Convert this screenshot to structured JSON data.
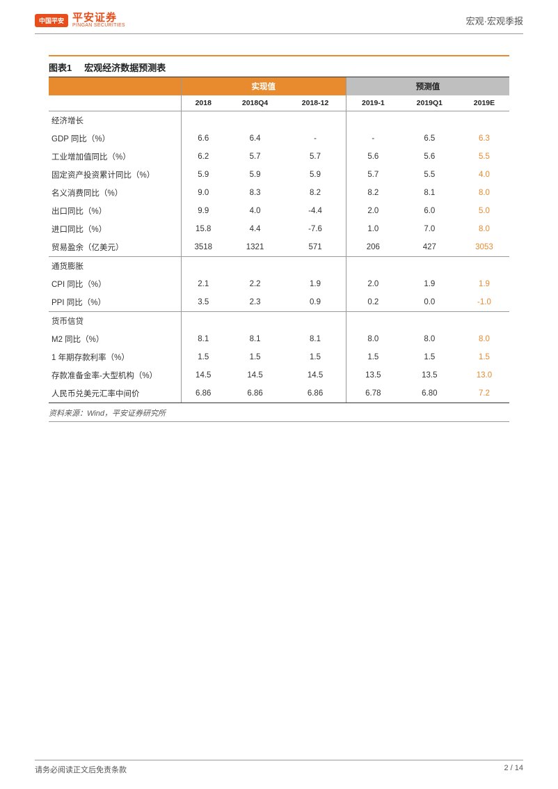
{
  "header": {
    "logo_badge": "中国平安",
    "logo_cn": "平安证券",
    "logo_en": "PINGAN SECURITIES",
    "doc_type": "宏观·宏观季报"
  },
  "figure": {
    "number": "图表1",
    "title": "宏观经济数据预测表"
  },
  "colors": {
    "accent": "#e88a2e",
    "header_grey": "#bfbfbf",
    "forecast_text": "#e88a2e"
  },
  "table": {
    "group_headers": {
      "actual": "实现值",
      "forecast": "预测值"
    },
    "sub_headers": [
      "2018",
      "2018Q4",
      "2018-12",
      "2019-1",
      "2019Q1",
      "2019E"
    ],
    "sections": [
      {
        "name": "经济增长",
        "rows": [
          {
            "label": "GDP 同比（%）",
            "v": [
              "6.6",
              "6.4",
              "-",
              "-",
              "6.5",
              "6.3"
            ]
          },
          {
            "label": "工业增加值同比（%）",
            "v": [
              "6.2",
              "5.7",
              "5.7",
              "5.6",
              "5.6",
              "5.5"
            ]
          },
          {
            "label": "固定资产投资累计同比（%）",
            "v": [
              "5.9",
              "5.9",
              "5.9",
              "5.7",
              "5.5",
              "4.0"
            ]
          },
          {
            "label": "名义消费同比（%）",
            "v": [
              "9.0",
              "8.3",
              "8.2",
              "8.2",
              "8.1",
              "8.0"
            ]
          },
          {
            "label": "出口同比（%）",
            "v": [
              "9.9",
              "4.0",
              "-4.4",
              "2.0",
              "6.0",
              "5.0"
            ]
          },
          {
            "label": "进口同比（%）",
            "v": [
              "15.8",
              "4.4",
              "-7.6",
              "1.0",
              "7.0",
              "8.0"
            ]
          },
          {
            "label": "贸易盈余（亿美元）",
            "v": [
              "3518",
              "1321",
              "571",
              "206",
              "427",
              "3053"
            ]
          }
        ]
      },
      {
        "name": "通货膨胀",
        "rows": [
          {
            "label": "CPI 同比（%）",
            "v": [
              "2.1",
              "2.2",
              "1.9",
              "2.0",
              "1.9",
              "1.9"
            ]
          },
          {
            "label": "PPI 同比（%）",
            "v": [
              "3.5",
              "2.3",
              "0.9",
              "0.2",
              "0.0",
              "-1.0"
            ]
          }
        ]
      },
      {
        "name": "货币信贷",
        "rows": [
          {
            "label": "M2 同比（%）",
            "v": [
              "8.1",
              "8.1",
              "8.1",
              "8.0",
              "8.0",
              "8.0"
            ]
          },
          {
            "label": "1 年期存款利率（%）",
            "v": [
              "1.5",
              "1.5",
              "1.5",
              "1.5",
              "1.5",
              "1.5"
            ]
          },
          {
            "label": "存款准备金率-大型机构（%）",
            "v": [
              "14.5",
              "14.5",
              "14.5",
              "13.5",
              "13.5",
              "13.0"
            ]
          },
          {
            "label": "人民币兑美元汇率中间价",
            "v": [
              "6.86",
              "6.86",
              "6.86",
              "6.78",
              "6.80",
              "7.2"
            ]
          }
        ]
      }
    ]
  },
  "source": "资料来源：Wind，平安证券研究所",
  "footer": {
    "disclaimer": "请务必阅读正文后免责条款",
    "page": "2 / 14"
  }
}
